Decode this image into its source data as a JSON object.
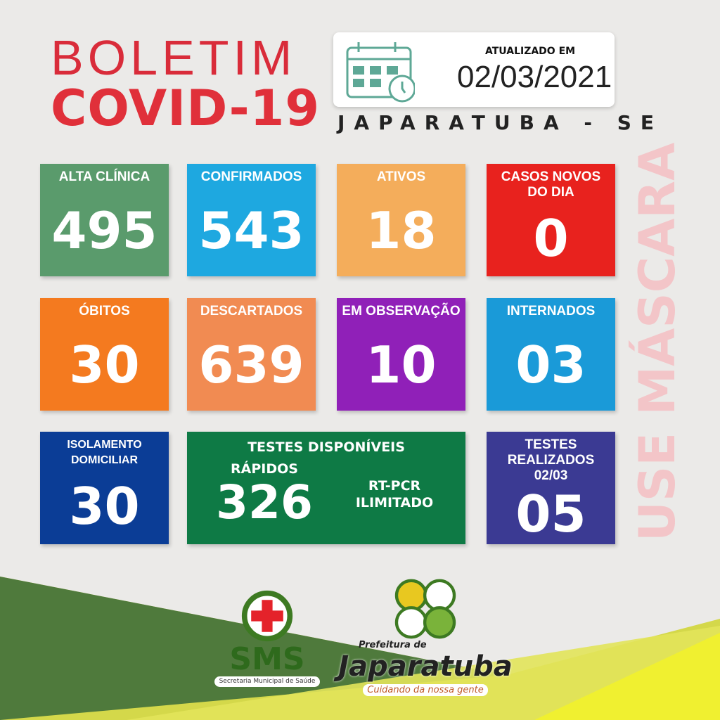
{
  "header": {
    "title_line1": "BOLETIM",
    "title_line2": "COVID-19",
    "updated_label": "ATUALIZADO EM",
    "updated_date": "02/03/2021",
    "city": "JAPARATUBA - SE"
  },
  "cards": [
    {
      "label": "ALTA CLÍNICA",
      "value": "495",
      "color": "#5a9b6c"
    },
    {
      "label": "CONFIRMADOS",
      "value": "543",
      "color": "#1ea8e0"
    },
    {
      "label": "ATIVOS",
      "value": "18",
      "color": "#f4ad5b"
    },
    {
      "label": "CASOS NOVOS DO DIA",
      "value": "0",
      "color": "#e8221e"
    },
    {
      "label": "ÓBITOS",
      "value": "30",
      "color": "#f47a1f"
    },
    {
      "label": "DESCARTADOS",
      "value": "639",
      "color": "#f18b52"
    },
    {
      "label": "EM OBSERVAÇÃO",
      "value": "10",
      "color": "#9020b8"
    },
    {
      "label": "INTERNADOS",
      "value": "03",
      "color": "#1a9ad8"
    },
    {
      "label": "ISOLAMENTO DOMICILIAR",
      "value": "30",
      "color": "#0b3d96"
    },
    {
      "label": "TESTES REALIZADOS 02/03",
      "value": "05",
      "color": "#3b3a93"
    }
  ],
  "tests": {
    "label": "TESTES DISPONÍVEIS",
    "rapid_label": "RÁPIDOS",
    "rapid_value": "326",
    "pcr_label": "RT-PCR",
    "pcr_value": "ILIMITADO",
    "color": "#0e7a45"
  },
  "side_text": "USE MÁSCARA",
  "logos": {
    "sms": "SMS",
    "sms_sub": "Secretaria Municipal de Saúde",
    "pref": "Prefeitura de",
    "city": "Japaratuba",
    "slogan": "Cuidando da nossa gente"
  }
}
